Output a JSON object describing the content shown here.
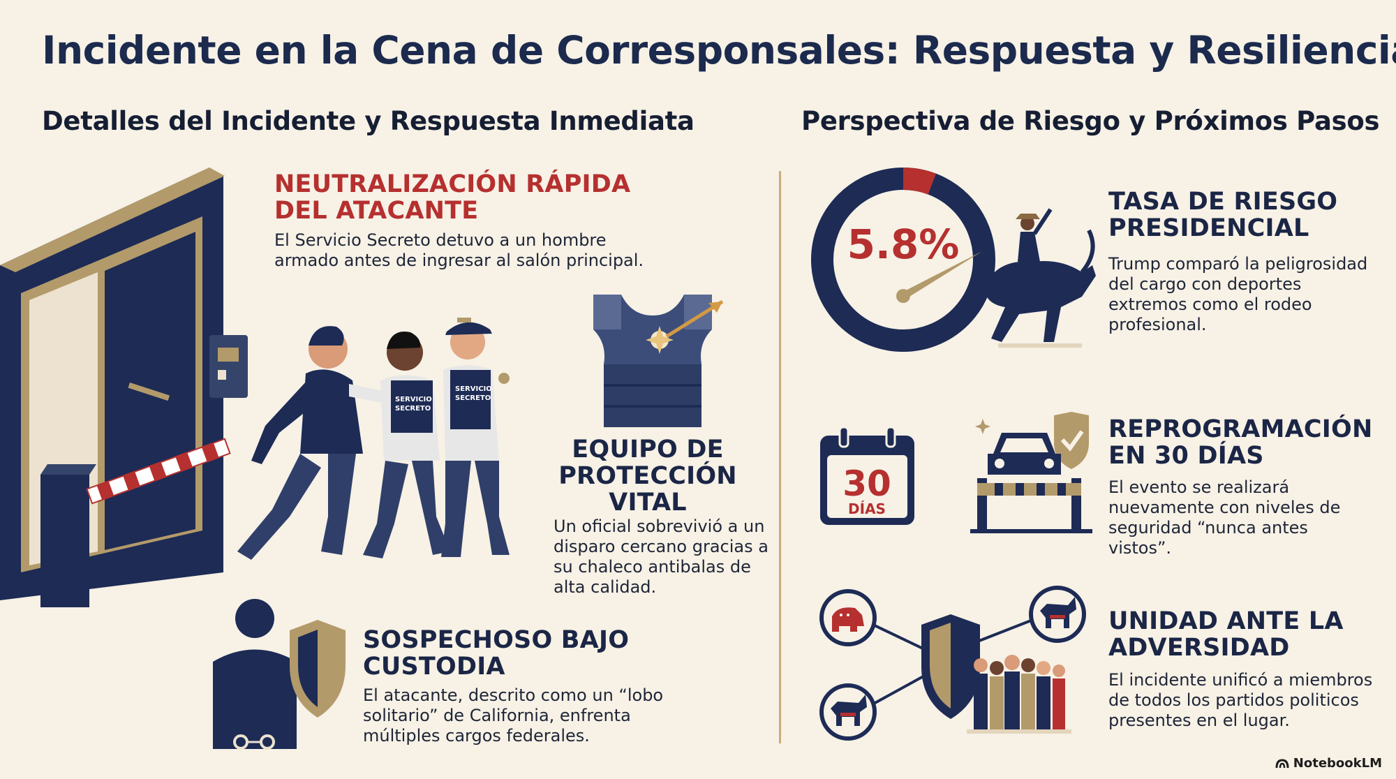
{
  "title": "Incidente en la Cena de Corresponsales: Respuesta y Resiliencia",
  "left": {
    "heading": "Detalles del Incidente y Respuesta Inmediata",
    "cards": [
      {
        "title": "NEUTRALIZACIÓN RÁPIDA DEL ATACANTE",
        "text": "El Servicio Secreto detuvo a un hombre armado antes de ingresar al salón principal."
      },
      {
        "title": "EQUIPO DE PROTECCIÓN VITAL",
        "text": "Un oficial sobrevivió a un disparo cercano gracias a su chaleco antibalas de alta calidad."
      },
      {
        "title": "SOSPECHOSO BAJO CUSTODIA",
        "text": "El atacante, descrito como un “lobo solitario” de California, enfrenta múltiples cargos federales."
      }
    ],
    "badge_text": "SERVICIO SECRETO"
  },
  "right": {
    "heading": "Perspectiva de Riesgo y Próximos Pasos",
    "cards": [
      {
        "title": "TASA DE RIESGO PRESIDENCIAL",
        "text": "Trump comparó la peligrosidad del cargo con deportes extremos como el rodeo profesional."
      },
      {
        "title": "REPROGRAMACIÓN EN 30 DÍAS",
        "text": "El evento se realizará nuevamente con niveles de seguridad “nunca antes vistos”."
      },
      {
        "title": "UNIDAD ANTE LA ADVERSIDAD",
        "text": "El incidente unificó a miembros de todos los partidos politicos presentes en el lugar."
      }
    ],
    "gauge": {
      "label": "5.8%",
      "value": 5.8
    },
    "calendar": {
      "number": "30",
      "unit": "DÍAS"
    }
  },
  "footer": {
    "brand": "NotebookLM"
  },
  "colors": {
    "navy": "#1d2b55",
    "red": "#b5302f",
    "gold": "#b39a6a",
    "background": "#f7f1e6"
  }
}
